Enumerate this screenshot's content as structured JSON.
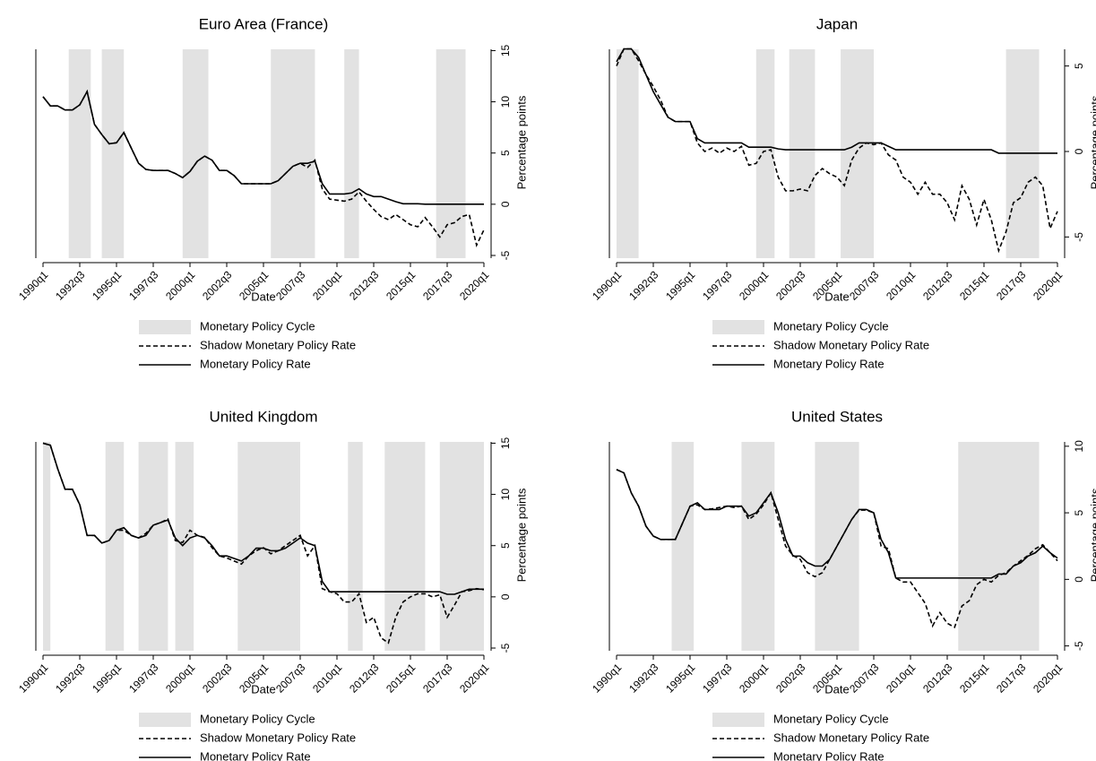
{
  "chart_data": [
    {
      "type": "line",
      "title": "Euro Area (France)",
      "x_label": "Date",
      "y_label": "Percentage points",
      "x": [
        "1990q1",
        "1990q3",
        "1991q1",
        "1991q3",
        "1992q1",
        "1992q3",
        "1993q1",
        "1993q3",
        "1994q1",
        "1994q3",
        "1995q1",
        "1995q3",
        "1996q1",
        "1996q3",
        "1997q1",
        "1997q3",
        "1998q1",
        "1998q3",
        "1999q1",
        "1999q3",
        "2000q1",
        "2000q3",
        "2001q1",
        "2001q3",
        "2002q1",
        "2002q3",
        "2003q1",
        "2003q3",
        "2004q1",
        "2004q3",
        "2005q1",
        "2005q3",
        "2006q1",
        "2006q3",
        "2007q1",
        "2007q3",
        "2008q1",
        "2008q3",
        "2009q1",
        "2009q3",
        "2010q1",
        "2010q3",
        "2011q1",
        "2011q3",
        "2012q1",
        "2012q3",
        "2013q1",
        "2013q3",
        "2014q1",
        "2014q3",
        "2015q1",
        "2015q3",
        "2016q1",
        "2016q3",
        "2017q1",
        "2017q3",
        "2018q1",
        "2018q3",
        "2019q1",
        "2019q3",
        "2020q1"
      ],
      "xticks": [
        "1990q1",
        "1992q3",
        "1995q1",
        "1997q3",
        "2000q1",
        "2002q3",
        "2005q1",
        "2007q3",
        "2010q1",
        "2012q3",
        "2015q1",
        "2017q3",
        "2020q1"
      ],
      "ylim": [
        -5.7,
        16
      ],
      "yticks": [
        -5,
        0,
        5,
        10,
        15
      ],
      "shaded": {
        "name": "Monetary Policy Cycle",
        "color": "#e2e2e2",
        "periods": [
          [
            "1991q4",
            "1993q2"
          ],
          [
            "1994q1",
            "1995q3"
          ],
          [
            "1999q3",
            "2001q2"
          ],
          [
            "2005q3",
            "2008q3"
          ],
          [
            "2010q3",
            "2011q3"
          ],
          [
            "2016q4",
            "2018q4"
          ]
        ]
      },
      "series": [
        {
          "name": "Shadow Monetary Policy Rate",
          "color": "#000000",
          "dash": "dashed",
          "values": [
            10.5,
            9.6,
            9.6,
            9.2,
            9.2,
            9.7,
            11.0,
            7.8,
            6.8,
            5.9,
            6.0,
            7.0,
            5.5,
            4.0,
            3.4,
            3.3,
            3.3,
            3.3,
            3.0,
            2.6,
            3.2,
            4.2,
            4.7,
            4.3,
            3.3,
            3.3,
            2.8,
            2.0,
            2.0,
            2.0,
            2.0,
            2.0,
            2.3,
            3.0,
            3.7,
            4.0,
            3.6,
            4.3,
            1.5,
            0.5,
            0.4,
            0.3,
            0.5,
            1.2,
            0.3,
            -0.5,
            -1.2,
            -1.5,
            -1.0,
            -1.5,
            -2.0,
            -2.2,
            -1.3,
            -2.2,
            -3.2,
            -2.0,
            -1.8,
            -1.2,
            -1.0,
            -4.0,
            -2.5
          ]
        },
        {
          "name": "Monetary Policy Rate",
          "color": "#000000",
          "dash": "solid",
          "values": [
            10.5,
            9.6,
            9.6,
            9.2,
            9.2,
            9.7,
            11.0,
            7.8,
            6.8,
            5.9,
            6.0,
            7.0,
            5.5,
            4.0,
            3.4,
            3.3,
            3.3,
            3.3,
            3.0,
            2.6,
            3.2,
            4.2,
            4.7,
            4.3,
            3.3,
            3.3,
            2.8,
            2.0,
            2.0,
            2.0,
            2.0,
            2.0,
            2.3,
            3.0,
            3.7,
            4.0,
            4.0,
            4.2,
            2.0,
            1.0,
            1.0,
            1.0,
            1.1,
            1.5,
            1.0,
            0.75,
            0.75,
            0.5,
            0.25,
            0.05,
            0.05,
            0.05,
            0,
            0,
            0,
            0,
            0,
            0,
            0,
            0,
            0
          ]
        }
      ]
    },
    {
      "type": "line",
      "title": "Japan",
      "x_label": "Date",
      "y_label": "Percentage points",
      "x": [
        "1990q1",
        "1990q3",
        "1991q1",
        "1991q3",
        "1992q1",
        "1992q3",
        "1993q1",
        "1993q3",
        "1994q1",
        "1994q3",
        "1995q1",
        "1995q3",
        "1996q1",
        "1996q3",
        "1997q1",
        "1997q3",
        "1998q1",
        "1998q3",
        "1999q1",
        "1999q3",
        "2000q1",
        "2000q3",
        "2001q1",
        "2001q3",
        "2002q1",
        "2002q3",
        "2003q1",
        "2003q3",
        "2004q1",
        "2004q3",
        "2005q1",
        "2005q3",
        "2006q1",
        "2006q3",
        "2007q1",
        "2007q3",
        "2008q1",
        "2008q3",
        "2009q1",
        "2009q3",
        "2010q1",
        "2010q3",
        "2011q1",
        "2011q3",
        "2012q1",
        "2012q3",
        "2013q1",
        "2013q3",
        "2014q1",
        "2014q3",
        "2015q1",
        "2015q3",
        "2016q1",
        "2016q3",
        "2017q1",
        "2017q3",
        "2018q1",
        "2018q3",
        "2019q1",
        "2019q3",
        "2020q1"
      ],
      "xticks": [
        "1990q1",
        "1992q3",
        "1995q1",
        "1997q3",
        "2000q1",
        "2002q3",
        "2005q1",
        "2007q3",
        "2010q1",
        "2012q3",
        "2015q1",
        "2017q3",
        "2020q1"
      ],
      "ylim": [
        -6.5,
        6.5
      ],
      "yticks": [
        -5,
        0,
        5
      ],
      "shaded": {
        "name": "Monetary Policy Cycle",
        "color": "#e2e2e2",
        "periods": [
          [
            "1990q1",
            "1991q3"
          ],
          [
            "1999q3",
            "2000q4"
          ],
          [
            "2001q4",
            "2003q3"
          ],
          [
            "2005q2",
            "2007q3"
          ],
          [
            "2016q3",
            "2018q4"
          ]
        ]
      },
      "series": [
        {
          "name": "Shadow Monetary Policy Rate",
          "color": "#000000",
          "dash": "dashed",
          "values": [
            5.0,
            6.0,
            6.0,
            5.3,
            4.5,
            3.8,
            3.0,
            2.0,
            1.75,
            1.75,
            1.75,
            0.5,
            0.0,
            0.2,
            -0.1,
            0.2,
            0.0,
            0.3,
            -0.8,
            -0.7,
            0.0,
            0.1,
            -1.5,
            -2.3,
            -2.3,
            -2.2,
            -2.3,
            -1.4,
            -1.0,
            -1.3,
            -1.5,
            -2.0,
            -0.5,
            0.2,
            0.5,
            0.4,
            0.5,
            -0.2,
            -0.5,
            -1.5,
            -1.8,
            -2.5,
            -1.8,
            -2.5,
            -2.5,
            -3.0,
            -4.0,
            -2.0,
            -2.8,
            -4.3,
            -2.8,
            -4.0,
            -5.8,
            -4.7,
            -3.0,
            -2.7,
            -1.8,
            -1.5,
            -2.0,
            -4.5,
            -3.5
          ]
        },
        {
          "name": "Monetary Policy Rate",
          "color": "#000000",
          "dash": "solid",
          "values": [
            5.25,
            6.0,
            6.0,
            5.5,
            4.5,
            3.5,
            2.75,
            2.0,
            1.75,
            1.75,
            1.75,
            0.75,
            0.5,
            0.5,
            0.5,
            0.5,
            0.5,
            0.5,
            0.25,
            0.25,
            0.25,
            0.25,
            0.15,
            0.1,
            0.1,
            0.1,
            0.1,
            0.1,
            0.1,
            0.1,
            0.1,
            0.1,
            0.25,
            0.5,
            0.5,
            0.5,
            0.5,
            0.3,
            0.1,
            0.1,
            0.1,
            0.1,
            0.1,
            0.1,
            0.1,
            0.1,
            0.1,
            0.1,
            0.1,
            0.1,
            0.1,
            0.1,
            -0.1,
            -0.1,
            -0.1,
            -0.1,
            -0.1,
            -0.1,
            -0.1,
            -0.1,
            -0.1
          ]
        }
      ]
    },
    {
      "type": "line",
      "title": "United Kingdom",
      "x_label": "Date",
      "y_label": "Percentage points",
      "x": [
        "1990q1",
        "1990q3",
        "1991q1",
        "1991q3",
        "1992q1",
        "1992q3",
        "1993q1",
        "1993q3",
        "1994q1",
        "1994q3",
        "1995q1",
        "1995q3",
        "1996q1",
        "1996q3",
        "1997q1",
        "1997q3",
        "1998q1",
        "1998q3",
        "1999q1",
        "1999q3",
        "2000q1",
        "2000q3",
        "2001q1",
        "2001q3",
        "2002q1",
        "2002q3",
        "2003q1",
        "2003q3",
        "2004q1",
        "2004q3",
        "2005q1",
        "2005q3",
        "2006q1",
        "2006q3",
        "2007q1",
        "2007q3",
        "2008q1",
        "2008q3",
        "2009q1",
        "2009q3",
        "2010q1",
        "2010q3",
        "2011q1",
        "2011q3",
        "2012q1",
        "2012q3",
        "2013q1",
        "2013q3",
        "2014q1",
        "2014q3",
        "2015q1",
        "2015q3",
        "2016q1",
        "2016q3",
        "2017q1",
        "2017q3",
        "2018q1",
        "2018q3",
        "2019q1",
        "2019q3",
        "2020q1"
      ],
      "xticks": [
        "1990q1",
        "1992q3",
        "1995q1",
        "1997q3",
        "2000q1",
        "2002q3",
        "2005q1",
        "2007q3",
        "2010q1",
        "2012q3",
        "2015q1",
        "2017q3",
        "2020q1"
      ],
      "ylim": [
        -5.7,
        16
      ],
      "yticks": [
        -5,
        0,
        5,
        10,
        15
      ],
      "shaded": {
        "name": "Monetary Policy Cycle",
        "color": "#e2e2e2",
        "periods": [
          [
            "1990q1",
            "1990q3"
          ],
          [
            "1994q2",
            "1995q3"
          ],
          [
            "1996q3",
            "1998q3"
          ],
          [
            "1999q1",
            "2000q2"
          ],
          [
            "2003q2",
            "2007q3"
          ],
          [
            "2010q4",
            "2011q4"
          ],
          [
            "2013q2",
            "2016q1"
          ],
          [
            "2017q1",
            "2020q1"
          ]
        ]
      },
      "series": [
        {
          "name": "Shadow Monetary Policy Rate",
          "color": "#000000",
          "dash": "dashed",
          "values": [
            15,
            14.8,
            12.5,
            10.5,
            10.5,
            9.0,
            6.0,
            6.0,
            5.25,
            5.5,
            6.5,
            6.5,
            6.0,
            5.75,
            6.2,
            7.0,
            7.25,
            7.6,
            5.5,
            5.3,
            6.5,
            6.0,
            5.8,
            4.8,
            4.0,
            3.8,
            3.5,
            3.2,
            4.0,
            4.5,
            4.8,
            4.2,
            4.5,
            5.0,
            5.5,
            6.0,
            4.0,
            5.0,
            0.8,
            0.5,
            0.3,
            -0.5,
            -0.5,
            0.3,
            -2.5,
            -2.0,
            -4.0,
            -4.5,
            -2.0,
            -0.5,
            0.0,
            0.3,
            0.3,
            0.0,
            0.2,
            -2.0,
            -0.8,
            0.5,
            0.6,
            0.8,
            0.7
          ]
        },
        {
          "name": "Monetary Policy Rate",
          "color": "#000000",
          "dash": "solid",
          "values": [
            15,
            14.8,
            12.5,
            10.5,
            10.5,
            9.0,
            6.0,
            6.0,
            5.25,
            5.5,
            6.5,
            6.75,
            6.0,
            5.75,
            6.0,
            7.0,
            7.25,
            7.5,
            5.75,
            5.0,
            5.75,
            6.0,
            5.75,
            5.0,
            4.0,
            4.0,
            3.75,
            3.5,
            4.0,
            4.75,
            4.75,
            4.5,
            4.5,
            4.75,
            5.25,
            5.75,
            5.25,
            5.0,
            1.5,
            0.5,
            0.5,
            0.5,
            0.5,
            0.5,
            0.5,
            0.5,
            0.5,
            0.5,
            0.5,
            0.5,
            0.5,
            0.5,
            0.5,
            0.5,
            0.5,
            0.25,
            0.25,
            0.5,
            0.75,
            0.75,
            0.75
          ]
        }
      ]
    },
    {
      "type": "line",
      "title": "United States",
      "x_label": "Date",
      "y_label": "Percentage points",
      "x": [
        "1990q1",
        "1990q3",
        "1991q1",
        "1991q3",
        "1992q1",
        "1992q3",
        "1993q1",
        "1993q3",
        "1994q1",
        "1994q3",
        "1995q1",
        "1995q3",
        "1996q1",
        "1996q3",
        "1997q1",
        "1997q3",
        "1998q1",
        "1998q3",
        "1999q1",
        "1999q3",
        "2000q1",
        "2000q3",
        "2001q1",
        "2001q3",
        "2002q1",
        "2002q3",
        "2003q1",
        "2003q3",
        "2004q1",
        "2004q3",
        "2005q1",
        "2005q3",
        "2006q1",
        "2006q3",
        "2007q1",
        "2007q3",
        "2008q1",
        "2008q3",
        "2009q1",
        "2009q3",
        "2010q1",
        "2010q3",
        "2011q1",
        "2011q3",
        "2012q1",
        "2012q3",
        "2013q1",
        "2013q3",
        "2014q1",
        "2014q3",
        "2015q1",
        "2015q3",
        "2016q1",
        "2016q3",
        "2017q1",
        "2017q3",
        "2018q1",
        "2018q3",
        "2019q1",
        "2019q3",
        "2020q1"
      ],
      "xticks": [
        "1990q1",
        "1992q3",
        "1995q1",
        "1997q3",
        "2000q1",
        "2002q3",
        "2005q1",
        "2007q3",
        "2010q1",
        "2012q3",
        "2015q1",
        "2017q3",
        "2020q1"
      ],
      "ylim": [
        -5.7,
        11
      ],
      "yticks": [
        -5,
        0,
        5,
        10
      ],
      "shaded": {
        "name": "Monetary Policy Cycle",
        "color": "#e2e2e2",
        "periods": [
          [
            "1993q4",
            "1995q2"
          ],
          [
            "1998q3",
            "2000q4"
          ],
          [
            "2003q3",
            "2006q3"
          ],
          [
            "2013q2",
            "2018q4"
          ]
        ]
      },
      "series": [
        {
          "name": "Shadow Monetary Policy Rate",
          "color": "#000000",
          "dash": "dashed",
          "values": [
            8.25,
            8.0,
            6.5,
            5.5,
            4.0,
            3.25,
            3.0,
            3.0,
            3.0,
            4.25,
            5.5,
            5.6,
            5.25,
            5.3,
            5.4,
            5.5,
            5.4,
            5.5,
            4.5,
            4.9,
            5.6,
            6.5,
            4.5,
            2.5,
            1.8,
            1.5,
            0.5,
            0.2,
            0.5,
            1.5,
            2.5,
            3.5,
            4.5,
            5.2,
            5.2,
            5.0,
            2.5,
            2.3,
            0.1,
            -0.2,
            -0.2,
            -1.0,
            -1.8,
            -3.5,
            -2.5,
            -3.3,
            -3.6,
            -2.0,
            -1.6,
            -0.4,
            0.0,
            -0.2,
            0.3,
            0.5,
            1.0,
            1.4,
            1.8,
            2.3,
            2.6,
            2.0,
            1.4
          ]
        },
        {
          "name": "Monetary Policy Rate",
          "color": "#000000",
          "dash": "solid",
          "values": [
            8.25,
            8.0,
            6.5,
            5.5,
            4.0,
            3.25,
            3.0,
            3.0,
            3.0,
            4.25,
            5.5,
            5.75,
            5.25,
            5.25,
            5.25,
            5.5,
            5.5,
            5.5,
            4.75,
            5.0,
            5.75,
            6.5,
            5.0,
            3.0,
            1.75,
            1.75,
            1.25,
            1.0,
            1.0,
            1.5,
            2.5,
            3.5,
            4.5,
            5.25,
            5.25,
            5.0,
            3.0,
            2.0,
            0.1,
            0.1,
            0.1,
            0.1,
            0.1,
            0.1,
            0.1,
            0.1,
            0.1,
            0.1,
            0.1,
            0.1,
            0.1,
            0.1,
            0.4,
            0.4,
            1.0,
            1.25,
            1.75,
            2.0,
            2.5,
            2.0,
            1.6
          ]
        }
      ]
    }
  ]
}
